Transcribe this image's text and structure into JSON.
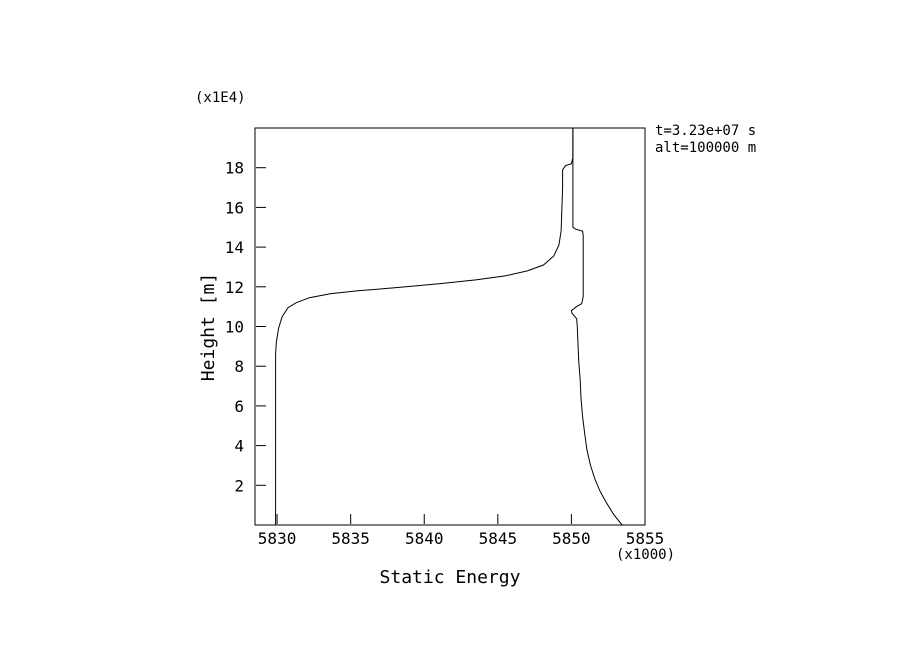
{
  "chart_data": {
    "type": "line",
    "title": "",
    "xlabel": "Static Energy",
    "ylabel": "Height [m]",
    "x_scale_note": "(x1000)",
    "y_scale_note": "(x1E4)",
    "annotations": [
      "t=3.23e+07 s",
      "alt=100000 m"
    ],
    "xlim": [
      5828.5,
      5855.0
    ],
    "ylim": [
      0,
      20
    ],
    "x_ticks": [
      5830,
      5835,
      5840,
      5845,
      5850,
      5855
    ],
    "y_ticks": [
      2,
      4,
      6,
      8,
      10,
      12,
      14,
      16,
      18
    ],
    "x_units_multiplier": 1000,
    "y_units_multiplier": 10000,
    "grid": false,
    "legend": false,
    "line_color": "#000000",
    "series": [
      {
        "name": "curve_left",
        "color": "#000000",
        "points": [
          [
            5829.9,
            0
          ],
          [
            5829.9,
            8.6
          ],
          [
            5829.95,
            9.2
          ],
          [
            5830.1,
            9.9
          ],
          [
            5830.35,
            10.5
          ],
          [
            5830.75,
            10.95
          ],
          [
            5831.3,
            11.2
          ],
          [
            5832.2,
            11.45
          ],
          [
            5833.6,
            11.65
          ],
          [
            5835.5,
            11.8
          ],
          [
            5838.0,
            11.95
          ],
          [
            5841.0,
            12.15
          ],
          [
            5843.5,
            12.35
          ],
          [
            5845.5,
            12.55
          ],
          [
            5847.0,
            12.8
          ],
          [
            5848.1,
            13.1
          ],
          [
            5848.8,
            13.55
          ],
          [
            5849.15,
            14.1
          ],
          [
            5849.3,
            14.8
          ],
          [
            5849.35,
            15.8
          ],
          [
            5849.4,
            17.0
          ],
          [
            5849.4,
            17.9
          ],
          [
            5849.6,
            18.1
          ],
          [
            5850.0,
            18.2
          ],
          [
            5850.1,
            18.5
          ],
          [
            5850.1,
            20.0
          ]
        ]
      },
      {
        "name": "curve_right",
        "color": "#000000",
        "points": [
          [
            5853.45,
            0
          ],
          [
            5852.9,
            0.5
          ],
          [
            5852.4,
            1.1
          ],
          [
            5851.95,
            1.7
          ],
          [
            5851.6,
            2.3
          ],
          [
            5851.3,
            3.0
          ],
          [
            5851.05,
            3.8
          ],
          [
            5850.9,
            4.6
          ],
          [
            5850.75,
            5.5
          ],
          [
            5850.65,
            6.4
          ],
          [
            5850.6,
            7.3
          ],
          [
            5850.5,
            8.2
          ],
          [
            5850.45,
            9.1
          ],
          [
            5850.4,
            10.0
          ],
          [
            5850.35,
            10.4
          ],
          [
            5850.05,
            10.65
          ],
          [
            5850.0,
            10.8
          ],
          [
            5850.35,
            11.0
          ],
          [
            5850.7,
            11.15
          ],
          [
            5850.8,
            11.5
          ],
          [
            5850.8,
            14.6
          ],
          [
            5850.75,
            14.8
          ],
          [
            5850.3,
            14.9
          ],
          [
            5850.1,
            15.0
          ],
          [
            5850.1,
            17.0
          ],
          [
            5850.1,
            20.0
          ]
        ]
      }
    ]
  }
}
